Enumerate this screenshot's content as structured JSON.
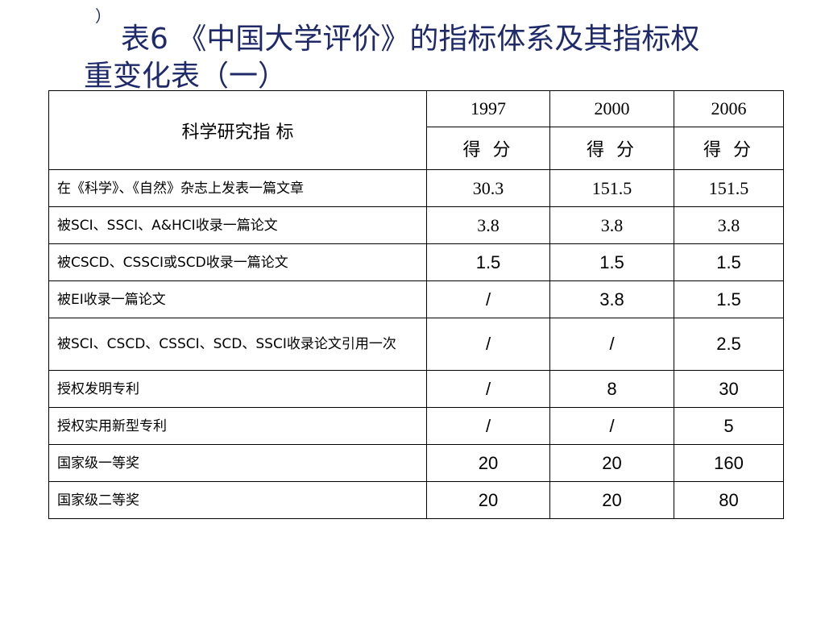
{
  "slide": {
    "stray_mark": "）",
    "title_line1": "表6 《中国大学评价》的指标体系及其指标权",
    "title_line2": "重变化表（一）"
  },
  "table": {
    "header_label": "科学研究指 标",
    "years": [
      "1997",
      "2000",
      "2006"
    ],
    "unit_labels": [
      "得 分",
      "得 分",
      "得 分"
    ],
    "rows": [
      {
        "label": "在《科学》、《自然》杂志上发表一篇文章",
        "values": [
          "30.3",
          "151.5",
          "151.5"
        ]
      },
      {
        "label": "被SCI、SSCI、A&HCI收录一篇论文",
        "values": [
          "3.8",
          "3.8",
          "3.8"
        ]
      },
      {
        "label": "被CSCD、CSSCI或SCD收录一篇论文",
        "values": [
          "1.5",
          "1.5",
          "1.5"
        ]
      },
      {
        "label": "被EI收录一篇论文",
        "values": [
          "/",
          "3.8",
          "1.5"
        ]
      },
      {
        "label": "被SCI、CSCD、CSSCI、SCD、SSCI收录论文引用一次",
        "values": [
          "/",
          "/",
          "2.5"
        ]
      },
      {
        "label": "授权发明专利",
        "values": [
          "/",
          "8",
          "30"
        ]
      },
      {
        "label": "授权实用新型专利",
        "values": [
          "/",
          "/",
          "5"
        ]
      },
      {
        "label": "国家级一等奖",
        "values": [
          "20",
          "20",
          "160"
        ]
      },
      {
        "label": "国家级二等奖",
        "values": [
          "20",
          "20",
          "80"
        ]
      }
    ]
  }
}
